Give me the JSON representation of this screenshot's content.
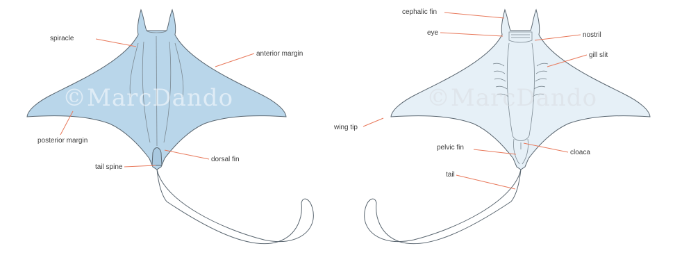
{
  "colors": {
    "dorsal_fill": "#b9d6ea",
    "ventral_fill": "#e6f0f7",
    "outline": "#5a6670",
    "leader": "#e8785a",
    "label_text": "#3a3a3a"
  },
  "watermark": {
    "left": "©MarcDando",
    "right": "©MarcDando"
  },
  "dorsal_view": {
    "labels": {
      "spiracle": "spiracle",
      "anterior_margin": "anterior margin",
      "posterior_margin": "posterior margin",
      "tail_spine": "tail spine",
      "dorsal_fin": "dorsal fin"
    }
  },
  "ventral_view": {
    "labels": {
      "cephalic_fin": "cephalic fin",
      "eye": "eye",
      "nostril": "nostril",
      "gill_slit": "gill slit",
      "wing_tip": "wing tip",
      "pelvic_fin": "pelvic fin",
      "cloaca": "cloaca",
      "tail": "tail"
    }
  }
}
